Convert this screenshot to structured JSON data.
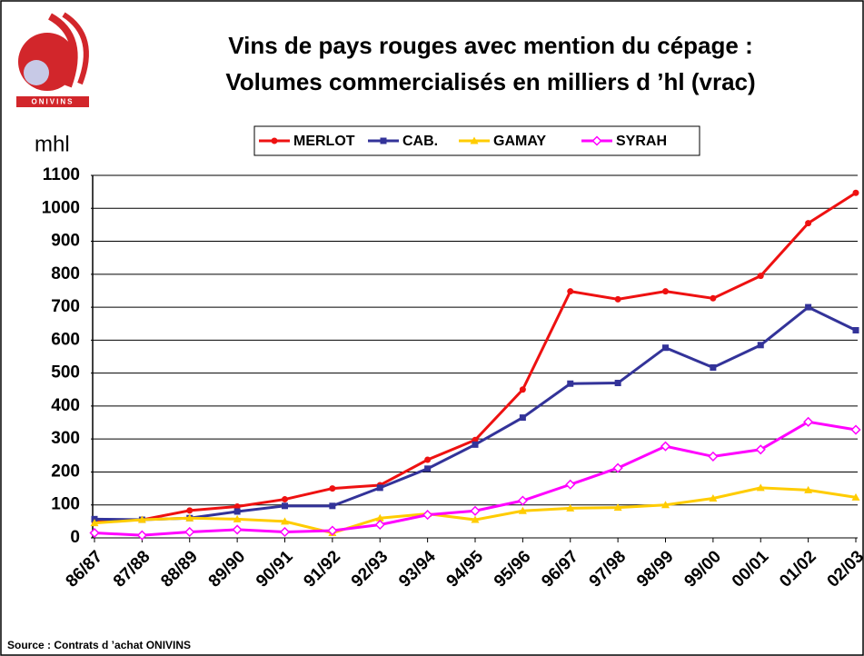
{
  "chart_data": {
    "type": "line",
    "title_lines": [
      "Vins de pays rouges avec mention du cépage :",
      "Volumes commercialisés en milliers d ’hl (vrac)"
    ],
    "y_axis_label": "mhl",
    "source": "Source : Contrats d ’achat ONIVINS",
    "logo_text": "ONIVINS",
    "categories": [
      "86/87",
      "87/88",
      "88/89",
      "89/90",
      "90/91",
      "91/92",
      "92/93",
      "93/94",
      "94/95",
      "95/96",
      "96/97",
      "97/98",
      "98/99",
      "99/00",
      "00/01",
      "01/02",
      "02/03"
    ],
    "series": [
      {
        "name": "MERLOT",
        "color": "#ee1111",
        "marker": "circle",
        "values": [
          50,
          55,
          83,
          95,
          117,
          150,
          160,
          237,
          297,
          450,
          748,
          724,
          748,
          727,
          795,
          955,
          1047
        ]
      },
      {
        "name": "CAB.",
        "color": "#333399",
        "marker": "square",
        "values": [
          57,
          55,
          60,
          80,
          97,
          97,
          152,
          210,
          283,
          365,
          468,
          470,
          577,
          517,
          585,
          700,
          630
        ]
      },
      {
        "name": "GAMAY",
        "color": "#ffcc00",
        "marker": "triangle",
        "values": [
          45,
          55,
          60,
          57,
          50,
          15,
          60,
          73,
          55,
          82,
          90,
          92,
          100,
          120,
          152,
          145,
          123
        ]
      },
      {
        "name": "SYRAH",
        "color": "#ff00ff",
        "marker": "diamond",
        "values": [
          15,
          8,
          18,
          25,
          18,
          22,
          40,
          70,
          82,
          113,
          162,
          212,
          278,
          247,
          268,
          352,
          328
        ]
      }
    ],
    "ylim": [
      0,
      1100
    ],
    "yticks": [
      0,
      100,
      200,
      300,
      400,
      500,
      600,
      700,
      800,
      900,
      1000,
      1100
    ],
    "grid": true,
    "legend": "top"
  }
}
